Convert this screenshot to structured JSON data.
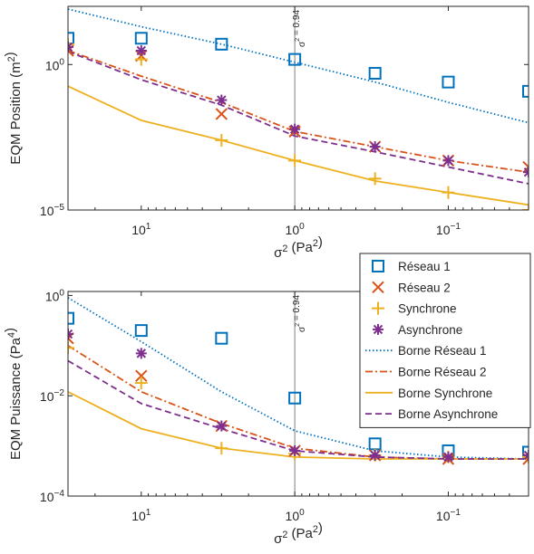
{
  "chart_data": [
    {
      "type": "scatter",
      "ylabel": "EQM Position (m²)",
      "xlabel": "σ² (Pa²)",
      "x_scale": "log-reversed",
      "y_scale": "log",
      "xlim": [
        30,
        0.03
      ],
      "ylim": [
        1e-05,
        100
      ],
      "x_ticks": [
        10,
        1,
        0.1
      ],
      "x_tick_labels": [
        "10¹",
        "10⁰",
        "10⁻¹"
      ],
      "y_ticks": [
        1,
        1e-05
      ],
      "y_tick_labels": [
        "10⁰",
        "10⁻⁵"
      ],
      "vline": {
        "x": 1,
        "label": "σ² = 0.94"
      },
      "x": [
        30,
        10,
        3,
        1,
        0.3,
        0.1,
        0.03
      ],
      "series": [
        {
          "name": "Réseau 1",
          "kind": "marker",
          "marker": "square",
          "color": "#0072BD",
          "values": [
            8,
            8,
            5,
            1.5,
            0.5,
            0.25,
            0.12
          ]
        },
        {
          "name": "Réseau 2",
          "kind": "marker",
          "marker": "x",
          "color": "#D95319",
          "values": [
            3,
            2,
            0.02,
            0.005,
            0.0015,
            0.0005,
            0.0003
          ]
        },
        {
          "name": "Synchrone",
          "kind": "marker",
          "marker": "plus",
          "color": "#EDB120",
          "values": [
            5,
            1.5,
            0.0025,
            0.0005,
            0.00012,
            4e-05,
            1e-05
          ]
        },
        {
          "name": "Asynchrone",
          "kind": "marker",
          "marker": "asterisk",
          "color": "#7E2F8E",
          "values": [
            4,
            3,
            0.06,
            0.006,
            0.0015,
            0.0005,
            0.0002
          ]
        },
        {
          "name": "Borne Réseau 1",
          "kind": "line",
          "dash": "dotted",
          "color": "#0072BD",
          "values": [
            80,
            20,
            5,
            1.2,
            0.25,
            0.05,
            0.01
          ]
        },
        {
          "name": "Borne Réseau 2",
          "kind": "line",
          "dash": "dashdot",
          "color": "#D95319",
          "values": [
            3,
            0.4,
            0.05,
            0.005,
            0.0015,
            0.0005,
            0.0002
          ]
        },
        {
          "name": "Borne Synchrone",
          "kind": "line",
          "dash": "solid",
          "color": "#EDB120",
          "values": [
            0.18,
            0.012,
            0.0025,
            0.0005,
            0.0001,
            4e-05,
            1.5e-05
          ]
        },
        {
          "name": "Borne Asynchrone",
          "kind": "line",
          "dash": "dashed",
          "color": "#7E2F8E",
          "values": [
            2.8,
            0.3,
            0.04,
            0.0035,
            0.001,
            0.0003,
            8e-05
          ]
        }
      ]
    },
    {
      "type": "scatter",
      "ylabel": "EQM Puissance (Pa⁴)",
      "xlabel": "σ² (Pa²)",
      "x_scale": "log-reversed",
      "y_scale": "log",
      "xlim": [
        30,
        0.03
      ],
      "ylim": [
        0.0001,
        1.2
      ],
      "x_ticks": [
        10,
        1,
        0.1
      ],
      "x_tick_labels": [
        "10¹",
        "10⁰",
        "10⁻¹"
      ],
      "y_ticks": [
        1,
        0.01,
        0.0001
      ],
      "y_tick_labels": [
        "10⁰",
        "10⁻²",
        "10⁻⁴"
      ],
      "vline": {
        "x": 1,
        "label": "σ² = 0.94"
      },
      "x": [
        30,
        10,
        3,
        1,
        0.3,
        0.1,
        0.03
      ],
      "series": [
        {
          "name": "Réseau 1",
          "kind": "marker",
          "marker": "square",
          "color": "#0072BD",
          "values": [
            0.35,
            0.2,
            0.14,
            0.009,
            0.0011,
            0.0008,
            0.00075
          ]
        },
        {
          "name": "Réseau 2",
          "kind": "marker",
          "marker": "x",
          "color": "#D95319",
          "values": [
            0.14,
            0.025,
            0.0025,
            0.0008,
            0.00065,
            0.00055,
            0.00055
          ]
        },
        {
          "name": "Synchrone",
          "kind": "marker",
          "marker": "plus",
          "color": "#EDB120",
          "values": [
            0.09,
            0.018,
            0.0009,
            0.0007,
            0.00065,
            0.0006,
            0.0006
          ]
        },
        {
          "name": "Asynchrone",
          "kind": "marker",
          "marker": "asterisk",
          "color": "#7E2F8E",
          "values": [
            0.17,
            0.07,
            0.0025,
            0.0008,
            0.00065,
            0.0006,
            0.00065
          ]
        },
        {
          "name": "Borne Réseau 1",
          "kind": "line",
          "dash": "dotted",
          "color": "#0072BD",
          "values": [
            0.9,
            0.12,
            0.012,
            0.002,
            0.0008,
            0.0006,
            0.00055
          ]
        },
        {
          "name": "Borne Réseau 2",
          "kind": "line",
          "dash": "dashdot",
          "color": "#D95319",
          "values": [
            0.1,
            0.012,
            0.0028,
            0.0009,
            0.0006,
            0.00055,
            0.00055
          ]
        },
        {
          "name": "Borne Synchrone",
          "kind": "line",
          "dash": "solid",
          "color": "#EDB120",
          "values": [
            0.012,
            0.0022,
            0.0009,
            0.0006,
            0.00055,
            0.00055,
            0.00055
          ]
        },
        {
          "name": "Borne Asynchrone",
          "kind": "line",
          "dash": "dashed",
          "color": "#7E2F8E",
          "values": [
            0.05,
            0.007,
            0.0022,
            0.0008,
            0.0006,
            0.00055,
            0.00055
          ]
        }
      ]
    }
  ],
  "legend": {
    "placement": "bottom-right of top panel",
    "items": [
      "Réseau 1",
      "Réseau 2",
      "Synchrone",
      "Asynchrone",
      "Borne Réseau 1",
      "Borne Réseau 2",
      "Borne Synchrone",
      "Borne Asynchrone"
    ]
  },
  "colors": {
    "axis": "#262626",
    "vline": "#7f7f7f"
  }
}
